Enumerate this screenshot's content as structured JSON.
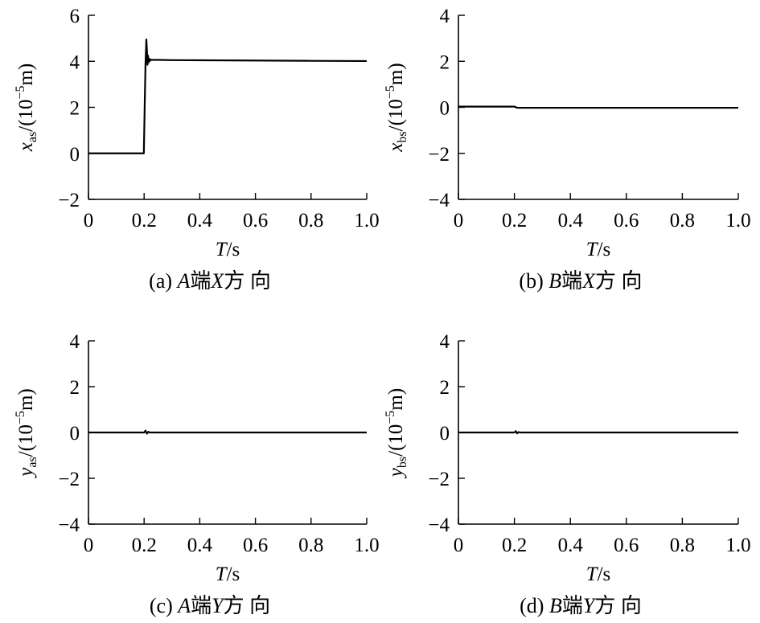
{
  "chart_data": [
    {
      "type": "line",
      "caption": {
        "prefix": "(a) ",
        "end": "A",
        "end_suffix": "端",
        "dir": "X",
        "dir_suffix": "方 向"
      },
      "ylabel": {
        "var": "x",
        "sub": "as",
        "unit_pre": "/(10",
        "unit_exp": "−5",
        "unit_post": "m)"
      },
      "xlabel": {
        "var": "T",
        "unit": "/s"
      },
      "xlim": [
        0,
        1.0
      ],
      "ylim": [
        -2,
        6
      ],
      "xticks": [
        "0",
        "0.2",
        "0.4",
        "0.6",
        "0.8",
        "1.0"
      ],
      "yticks": [
        "−2",
        "0",
        "2",
        "4",
        "6"
      ],
      "ytick_values": [
        -2,
        0,
        2,
        4,
        6
      ],
      "series": [
        {
          "x": [
            0,
            0.199,
            0.202,
            0.205,
            0.208,
            0.21,
            0.212,
            0.214,
            0.216,
            0.218,
            0.221,
            0.225,
            0.23,
            0.25,
            0.3,
            0.5,
            0.8,
            1.0
          ],
          "y": [
            0,
            0,
            2.0,
            3.9,
            4.95,
            4.5,
            3.85,
            4.25,
            3.95,
            4.12,
            4.02,
            4.07,
            4.06,
            4.06,
            4.05,
            4.04,
            4.02,
            4.01
          ]
        }
      ]
    },
    {
      "type": "line",
      "caption": {
        "prefix": "(b) ",
        "end": "B",
        "end_suffix": "端",
        "dir": "X",
        "dir_suffix": "方 向"
      },
      "ylabel": {
        "var": "x",
        "sub": "bs",
        "unit_pre": "/(10",
        "unit_exp": "−5",
        "unit_post": "m)"
      },
      "xlabel": {
        "var": "T",
        "unit": "/s"
      },
      "xlim": [
        0,
        1.0
      ],
      "ylim": [
        -4,
        4
      ],
      "xticks": [
        "0",
        "0.2",
        "0.4",
        "0.6",
        "0.8",
        "1.0"
      ],
      "yticks": [
        "−4",
        "−2",
        "0",
        "2",
        "4"
      ],
      "ytick_values": [
        -4,
        -2,
        0,
        2,
        4
      ],
      "series": [
        {
          "x": [
            0,
            0.2,
            0.21,
            0.5,
            1.0
          ],
          "y": [
            0.03,
            0.03,
            -0.02,
            -0.02,
            -0.02
          ]
        }
      ]
    },
    {
      "type": "line",
      "caption": {
        "prefix": "(c) ",
        "end": "A",
        "end_suffix": "端",
        "dir": "Y",
        "dir_suffix": "方 向"
      },
      "ylabel": {
        "var": "y",
        "sub": "as",
        "unit_pre": "/(10",
        "unit_exp": "−5",
        "unit_post": "m)"
      },
      "xlabel": {
        "var": "T",
        "unit": "/s"
      },
      "xlim": [
        0,
        1.0
      ],
      "ylim": [
        -4,
        4
      ],
      "xticks": [
        "0",
        "0.2",
        "0.4",
        "0.6",
        "0.8",
        "1.0"
      ],
      "yticks": [
        "−4",
        "−2",
        "0",
        "2",
        "4"
      ],
      "ytick_values": [
        -4,
        -2,
        0,
        2,
        4
      ],
      "series": [
        {
          "x": [
            0,
            0.2,
            0.205,
            0.21,
            0.215,
            0.22,
            1.0
          ],
          "y": [
            0,
            0,
            0.08,
            -0.05,
            0.03,
            0,
            0
          ]
        }
      ]
    },
    {
      "type": "line",
      "caption": {
        "prefix": "(d) ",
        "end": "B",
        "end_suffix": "端",
        "dir": "Y",
        "dir_suffix": "方 向"
      },
      "ylabel": {
        "var": "y",
        "sub": "bs",
        "unit_pre": "/(10",
        "unit_exp": "−5",
        "unit_post": "m)"
      },
      "xlabel": {
        "var": "T",
        "unit": "/s"
      },
      "xlim": [
        0,
        1.0
      ],
      "ylim": [
        -4,
        4
      ],
      "xticks": [
        "0",
        "0.2",
        "0.4",
        "0.6",
        "0.8",
        "1.0"
      ],
      "yticks": [
        "−4",
        "−2",
        "0",
        "2",
        "4"
      ],
      "ytick_values": [
        -4,
        -2,
        0,
        2,
        4
      ],
      "series": [
        {
          "x": [
            0,
            0.2,
            0.205,
            0.21,
            0.215,
            0.22,
            1.0
          ],
          "y": [
            0,
            0,
            0.06,
            -0.04,
            0.02,
            0,
            0
          ]
        }
      ]
    }
  ]
}
